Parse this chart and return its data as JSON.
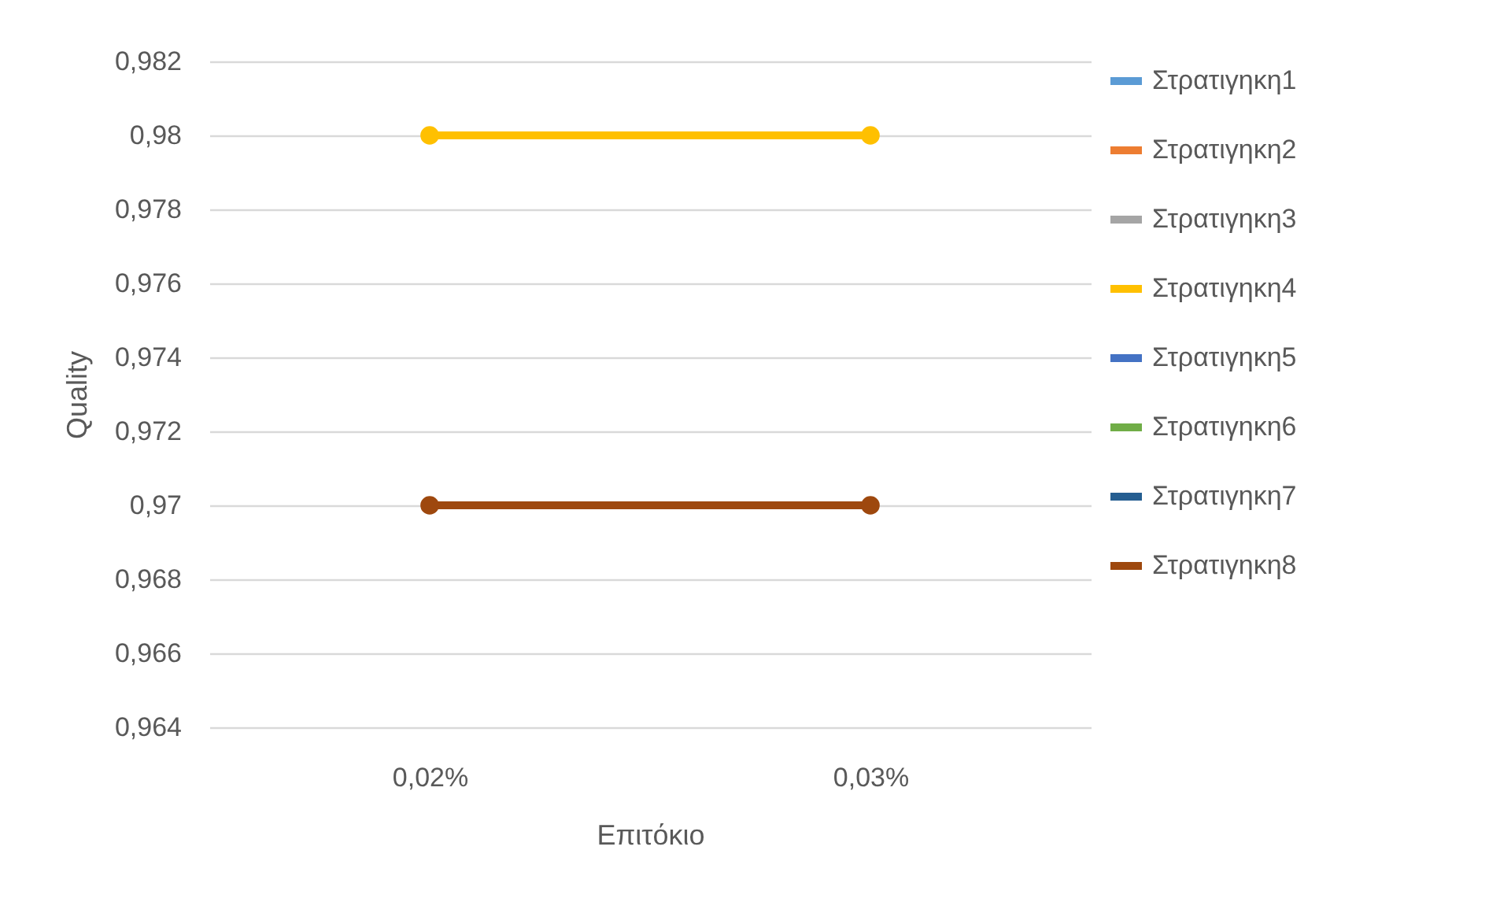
{
  "chart_data": {
    "type": "line",
    "xlabel": "Επιτόκιο",
    "ylabel": "Quality",
    "categories": [
      "0,02%",
      "0,03%"
    ],
    "series": [
      {
        "name": "Στρατιγηκη1",
        "color": "#5b9bd5",
        "values": [
          null,
          null
        ]
      },
      {
        "name": "Στρατιγηκη2",
        "color": "#ed7d31",
        "values": [
          null,
          null
        ]
      },
      {
        "name": "Στρατιγηκη3",
        "color": "#a5a5a5",
        "values": [
          null,
          null
        ]
      },
      {
        "name": "Στρατιγηκη4",
        "color": "#ffc000",
        "values": [
          0.98,
          0.98
        ]
      },
      {
        "name": "Στρατιγηκη5",
        "color": "#4472c4",
        "values": [
          null,
          null
        ]
      },
      {
        "name": "Στρατιγηκη6",
        "color": "#70ad47",
        "values": [
          null,
          null
        ]
      },
      {
        "name": "Στρατιγηκη7",
        "color": "#255e91",
        "values": [
          null,
          null
        ]
      },
      {
        "name": "Στρατιγηκη8",
        "color": "#9e480e",
        "values": [
          0.97,
          0.97
        ]
      }
    ],
    "ylim": [
      0.964,
      0.982
    ],
    "yticks": [
      {
        "value": 0.964,
        "label": "0,964"
      },
      {
        "value": 0.966,
        "label": "0,966"
      },
      {
        "value": 0.968,
        "label": "0,968"
      },
      {
        "value": 0.97,
        "label": "0,97"
      },
      {
        "value": 0.972,
        "label": "0,972"
      },
      {
        "value": 0.974,
        "label": "0,974"
      },
      {
        "value": 0.976,
        "label": "0,976"
      },
      {
        "value": 0.978,
        "label": "0,978"
      },
      {
        "value": 0.98,
        "label": "0,98"
      },
      {
        "value": 0.982,
        "label": "0,982"
      }
    ],
    "grid": "y",
    "legend": "right",
    "marker": "circle",
    "line_style": "solid"
  }
}
